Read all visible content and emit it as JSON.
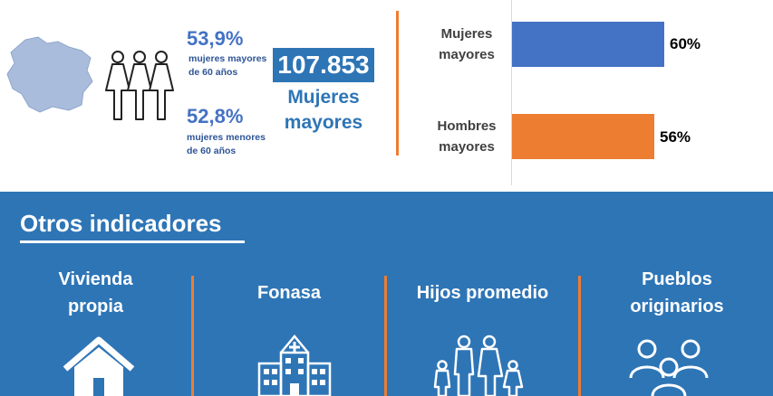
{
  "summary": {
    "older_pct": "53,9%",
    "older_desc": [
      "mujeres mayores",
      "de 60 años"
    ],
    "younger_pct": "52,8%",
    "younger_desc": [
      "mujeres menores",
      "de 60 años"
    ],
    "total_value": "107.853",
    "total_label": [
      "Mujeres",
      "mayores"
    ]
  },
  "chart_data": {
    "type": "bar",
    "orientation": "horizontal",
    "categories": [
      [
        "Mujeres",
        "mayores"
      ],
      [
        "Hombres",
        "mayores"
      ]
    ],
    "values": [
      60,
      56
    ],
    "value_labels": [
      "60%",
      "56%"
    ],
    "colors": [
      "#4472c4",
      "#ed7d31"
    ],
    "xlim": [
      0,
      100
    ],
    "grid": false
  },
  "indicators": {
    "title": "Otros indicadores",
    "items": [
      {
        "label": [
          "Vivienda",
          "propia"
        ],
        "icon": "house-icon"
      },
      {
        "label": [
          "Fonasa"
        ],
        "icon": "hospital-icon"
      },
      {
        "label": [
          "Hijos promedio"
        ],
        "icon": "family-icon"
      },
      {
        "label": [
          "Pueblos",
          "originarios"
        ],
        "icon": "people-group-icon"
      }
    ]
  }
}
